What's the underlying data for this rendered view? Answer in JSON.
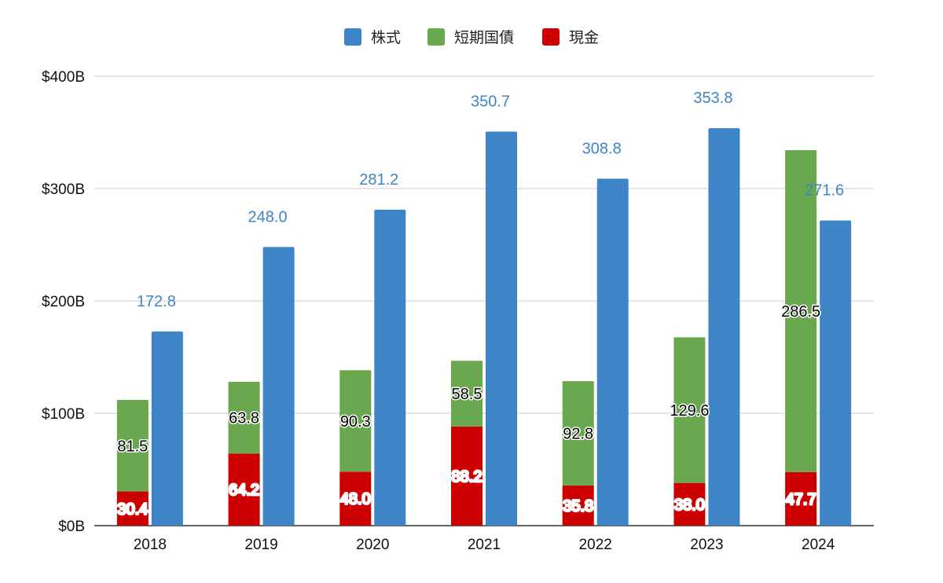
{
  "chart_data": {
    "type": "bar",
    "stacking": "grouped-stacked",
    "categories": [
      "2018",
      "2019",
      "2020",
      "2021",
      "2022",
      "2023",
      "2024"
    ],
    "series": [
      {
        "name": "現金",
        "stack": "left",
        "color": "#cc0000",
        "values": [
          30.4,
          64.2,
          48.0,
          88.2,
          35.8,
          38.0,
          47.7
        ]
      },
      {
        "name": "短期国債",
        "stack": "left",
        "color": "#6aa84f",
        "values": [
          81.5,
          63.8,
          90.3,
          58.5,
          92.8,
          129.6,
          286.5
        ]
      },
      {
        "name": "株式",
        "stack": "right",
        "color": "#3d85c6",
        "values": [
          172.8,
          248.0,
          281.2,
          350.7,
          308.8,
          353.8,
          271.6
        ]
      }
    ],
    "legend": {
      "position": "top",
      "order": [
        "株式",
        "短期国債",
        "現金"
      ]
    },
    "yaxis": {
      "ticks": [
        0,
        100,
        200,
        300,
        400
      ],
      "tick_labels": [
        "$0B",
        "$100B",
        "$200B",
        "$300B",
        "$400B"
      ],
      "ylim": [
        0,
        400
      ]
    },
    "grid": true,
    "data_labels": true
  }
}
